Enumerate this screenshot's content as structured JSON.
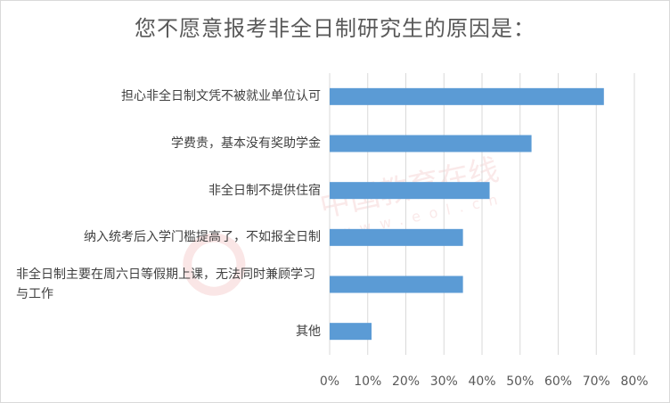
{
  "chart_data": {
    "type": "bar",
    "orientation": "horizontal",
    "title": "您不愿意报考非全日制研究生的原因是：",
    "categories": [
      "担心非全日制文凭不被就业单位认可",
      "学费贵，基本没有奖助学金",
      "非全日制不提供住宿",
      "纳入统考后入学门槛提高了，不如报全日制",
      "非全日制主要在周六日等假期上课，无法同时兼顾学习与工作",
      "其他"
    ],
    "values": [
      0.72,
      0.53,
      0.42,
      0.35,
      0.35,
      0.11
    ],
    "xlim": [
      0,
      0.8
    ],
    "x_ticks": [
      "0%",
      "10%",
      "20%",
      "30%",
      "40%",
      "50%",
      "60%",
      "70%",
      "80%"
    ],
    "grid": true,
    "bar_color": "#5b9bd5",
    "grid_color": "#d9d9d9"
  },
  "watermark": "中国教育在线 www.eol.cn"
}
